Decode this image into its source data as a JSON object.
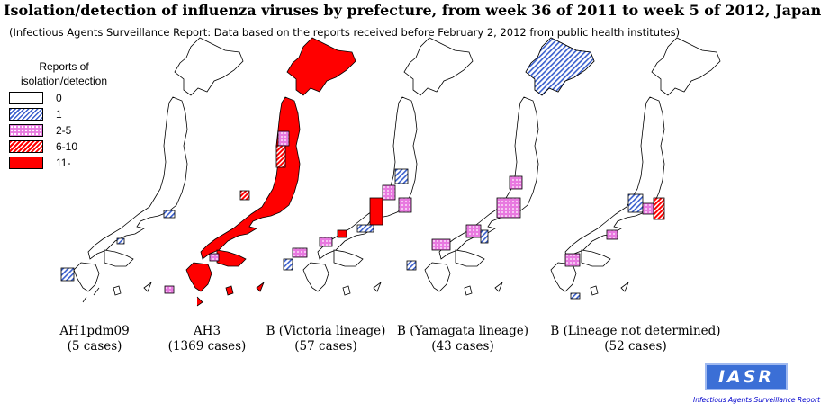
{
  "title": "Isolation/detection of influenza viruses by prefecture, from week 36 of 2011 to week 5 of 2012, Japan",
  "subtitle": "(Infectious Agents Surveillance Report: Data based on the reports received before February 2, 2012 from public health institutes)",
  "legend": {
    "title_line1": "Reports of",
    "title_line2": "isolation/detection",
    "items": [
      {
        "label": "0",
        "pattern": "white"
      },
      {
        "label": "1",
        "pattern": "blue-hatch"
      },
      {
        "label": "2-5",
        "pattern": "pink-dots"
      },
      {
        "label": "6-10",
        "pattern": "red-hatch"
      },
      {
        "label": "11-",
        "pattern": "solid-red"
      }
    ]
  },
  "colors": {
    "blue_hatch": "#3a5fcd",
    "pink_dots": "#e879e0",
    "red": "#ff0000",
    "outline": "#000000"
  },
  "maps": [
    {
      "name": "AH1pdm09",
      "cases": "(5 cases)"
    },
    {
      "name": "AH3",
      "cases": "(1369 cases)"
    },
    {
      "name": "B (Victoria lineage)",
      "cases": "(57 cases)"
    },
    {
      "name": "B (Yamagata lineage)",
      "cases": "(43 cases)"
    },
    {
      "name": "B (Lineage not determined)",
      "cases": "(52 cases)"
    }
  ],
  "logo": {
    "text": "IASR",
    "caption": "Infectious Agents Surveillance Report"
  }
}
